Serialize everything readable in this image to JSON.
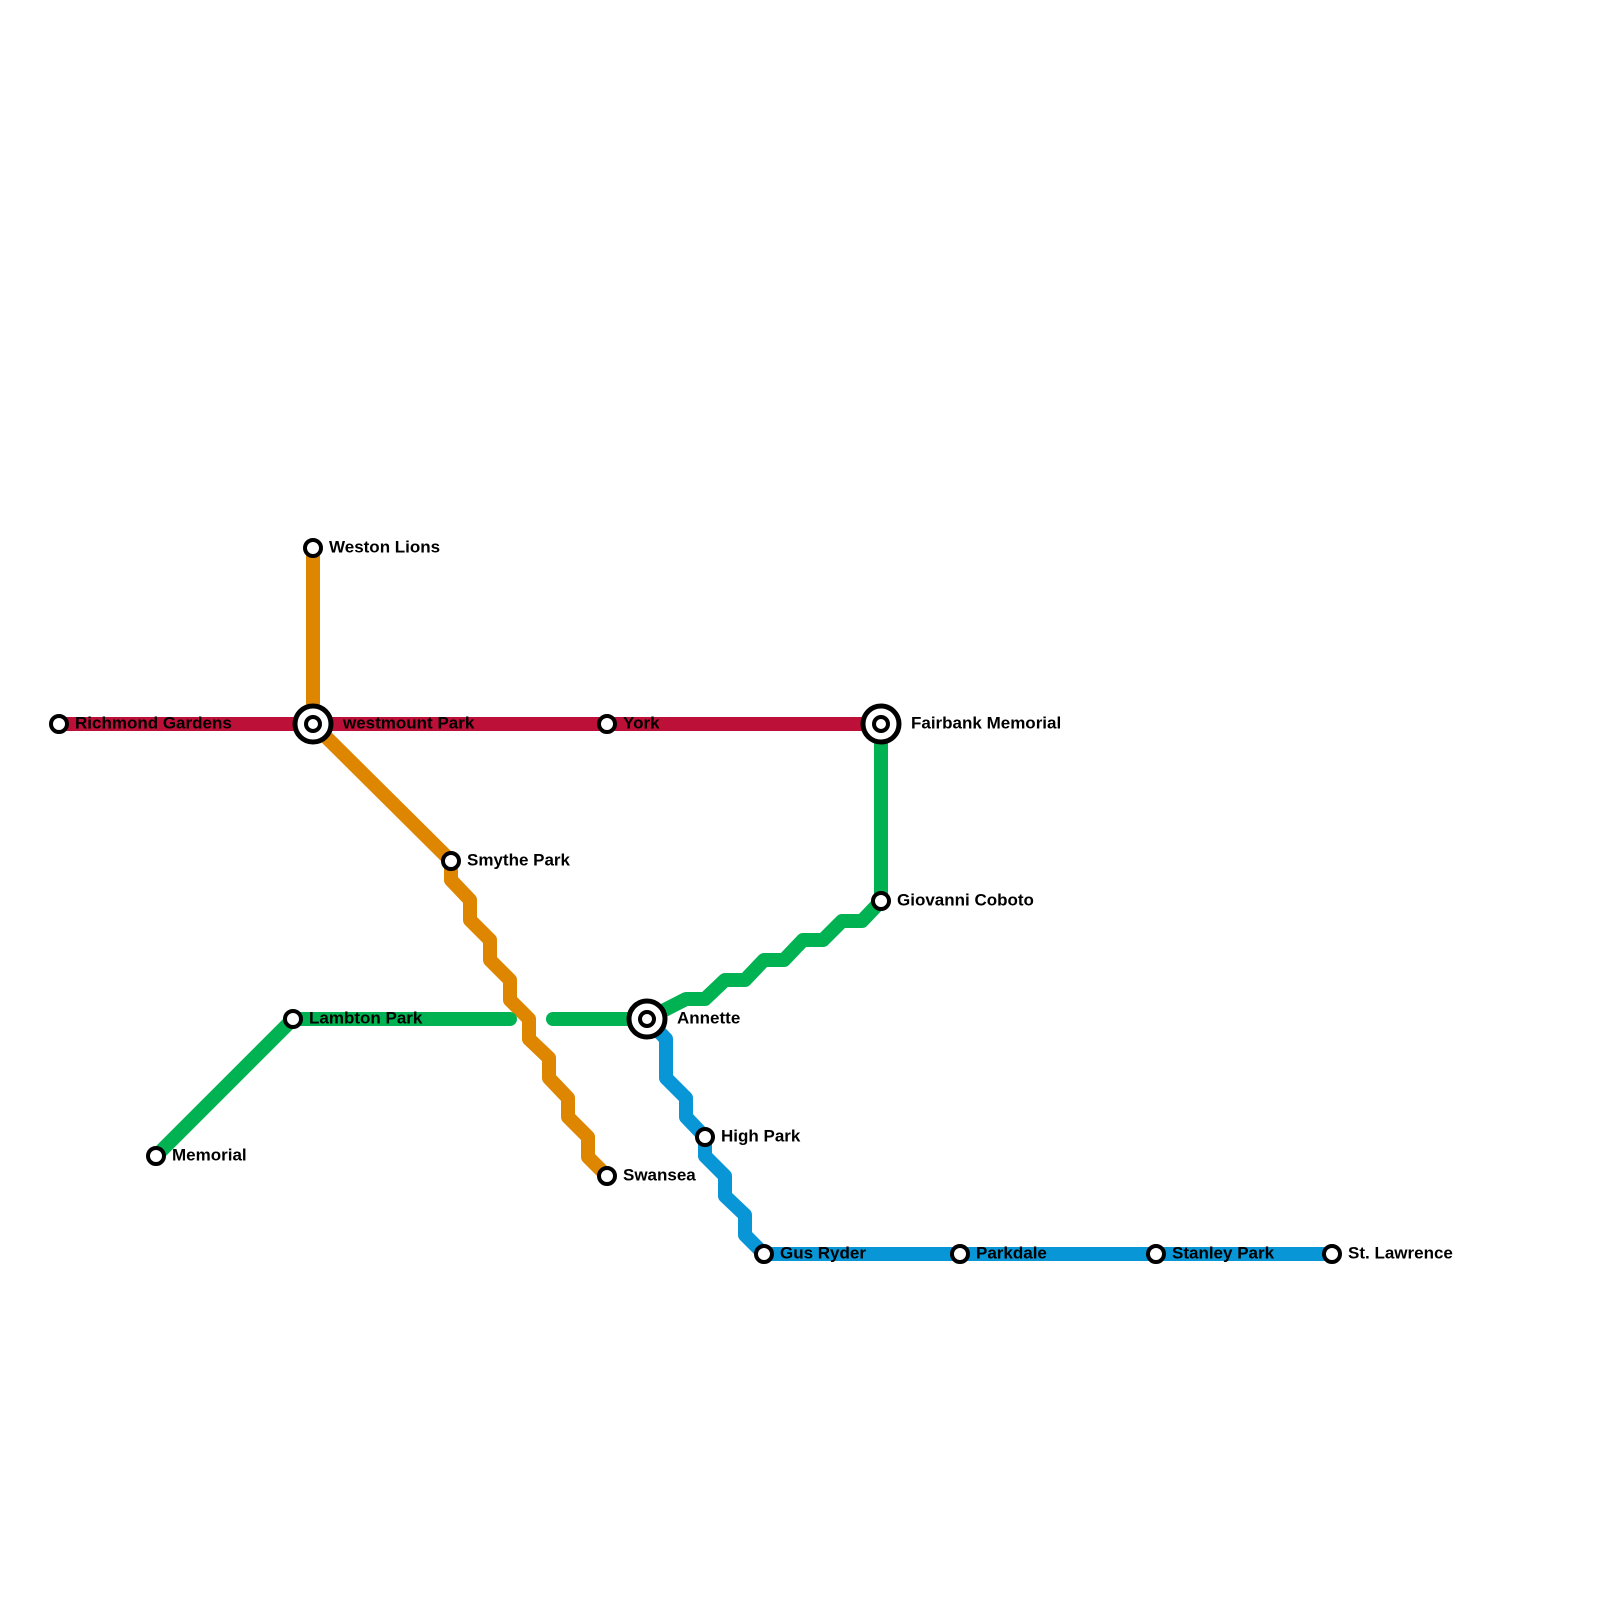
{
  "stations": [
    {
      "label": "Weston Lions"
    },
    {
      "label": "Richmond Gardens"
    },
    {
      "label": "westmount Park"
    },
    {
      "label": "York"
    },
    {
      "label": "Fairbank Memorial"
    },
    {
      "label": "Smythe Park"
    },
    {
      "label": "Giovanni Coboto"
    },
    {
      "label": "Lambton Park"
    },
    {
      "label": "Annette"
    },
    {
      "label": "Memorial"
    },
    {
      "label": "Swansea"
    },
    {
      "label": "High Park"
    },
    {
      "label": "Gus Ryder"
    },
    {
      "label": "Parkdale"
    },
    {
      "label": "Stanley Park"
    },
    {
      "label": "St. Lawrence"
    }
  ]
}
